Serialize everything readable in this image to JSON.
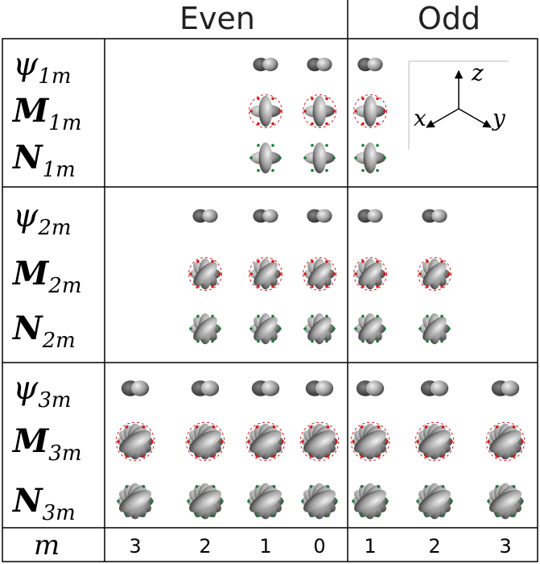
{
  "header": {
    "even": "Even",
    "odd": "Odd"
  },
  "groups": [
    {
      "rows": [
        {
          "symbol": "ψ",
          "subscript": "1m"
        },
        {
          "symbol": "M",
          "subscript": "1m"
        },
        {
          "symbol": "N",
          "subscript": "1m"
        }
      ]
    },
    {
      "rows": [
        {
          "symbol": "ψ",
          "subscript": "2m"
        },
        {
          "symbol": "M",
          "subscript": "2m"
        },
        {
          "symbol": "N",
          "subscript": "2m"
        }
      ]
    },
    {
      "rows": [
        {
          "symbol": "ψ",
          "subscript": "3m"
        },
        {
          "symbol": "M",
          "subscript": "3m"
        },
        {
          "symbol": "N",
          "subscript": "3m"
        }
      ]
    }
  ],
  "m_row": {
    "label": "m",
    "values": [
      3,
      2,
      1,
      0,
      1,
      2,
      3
    ]
  },
  "axes": {
    "x": "x",
    "y": "y",
    "z": "z"
  }
}
